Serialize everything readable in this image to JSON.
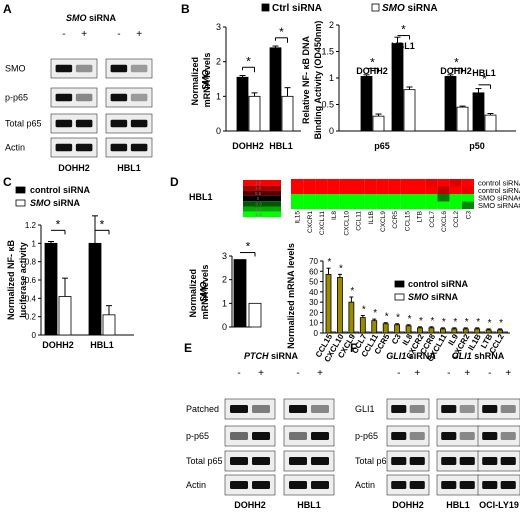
{
  "panels": {
    "A": {
      "letter": "A",
      "title": "SMO siRNA",
      "lane_signs": [
        "-",
        "+",
        "-",
        "+"
      ],
      "rows": [
        "SMO",
        "p-p65",
        "Total p65",
        "Actin"
      ],
      "cells": [
        "DOHH2",
        "HBL1"
      ],
      "band_levels": {
        "SMO": [
          [
            1,
            0.35
          ],
          [
            1,
            0.3
          ]
        ],
        "p-p65": [
          [
            1,
            0.4
          ],
          [
            1,
            0.3
          ]
        ],
        "Total p65": [
          [
            1,
            1
          ],
          [
            1,
            1
          ]
        ],
        "Actin": [
          [
            1,
            1
          ],
          [
            1,
            1
          ]
        ]
      }
    },
    "E": {
      "letter": "E",
      "title": "PTCH siRNA",
      "lane_signs": [
        "-",
        "+",
        "-",
        "+"
      ],
      "rows": [
        "Patched",
        "p-p65",
        "Total p65",
        "Actin"
      ],
      "cells": [
        "DOHH2",
        "HBL1"
      ],
      "band_levels": {
        "Patched": [
          [
            1,
            0.45
          ],
          [
            1,
            0.4
          ]
        ],
        "p-p65": [
          [
            0.55,
            1
          ],
          [
            0.5,
            1
          ]
        ],
        "Total p65": [
          [
            1,
            1
          ],
          [
            1,
            1
          ]
        ],
        "Actin": [
          [
            1,
            1
          ],
          [
            1,
            1
          ]
        ]
      }
    },
    "F": {
      "letter": "F",
      "title_left": "GLI1 siRNA",
      "title_right": "GLI1 shRNA",
      "lane_signs": [
        "-",
        "+",
        "-",
        "+",
        "-",
        "+"
      ],
      "rows": [
        "GLI1",
        "p-p65",
        "Total p65",
        "Actin"
      ],
      "cells": [
        "DOHH2",
        "HBL1",
        "OCI-LY19"
      ],
      "band_levels": {
        "GLI1": [
          [
            1,
            0.4
          ],
          [
            1,
            0.35
          ],
          [
            1,
            0.4
          ]
        ],
        "p-p65": [
          [
            1,
            0.4
          ],
          [
            1,
            0.4
          ],
          [
            1,
            0.4
          ]
        ],
        "Total p65": [
          [
            1,
            1
          ],
          [
            1,
            1
          ],
          [
            1,
            1
          ]
        ],
        "Actin": [
          [
            1,
            1
          ],
          [
            1,
            1
          ],
          [
            1,
            1
          ]
        ]
      }
    },
    "D": {
      "letter": "D",
      "cell_label": "HBL1",
      "scale_ticks": [
        "1.5",
        "1.0",
        "0.5",
        "0",
        "-0.5",
        "-1.0",
        "-1.5"
      ],
      "heatmap": {
        "rows": [
          "control siRNA#1",
          "control siRNA#2",
          "SMO siRNA#1",
          "SMO siRNA#2"
        ],
        "genes": [
          "IL15",
          "CXCR1",
          "CXCL11",
          "IL8",
          "CXCL10",
          "CCL11",
          "IL1B",
          "CXCL9",
          "CCR5",
          "CCL15",
          "LTB",
          "CCL7",
          "CXCL6",
          "CCL2",
          "C3"
        ],
        "values": [
          [
            1,
            1,
            1,
            1,
            1,
            1,
            1,
            1,
            1,
            1,
            1,
            0.9,
            1,
            0.8,
            1
          ],
          [
            1,
            1,
            1,
            1,
            1,
            1,
            1,
            1,
            1,
            1,
            1,
            1,
            0.6,
            1,
            0.9
          ],
          [
            -1,
            -1,
            -1,
            -1,
            -1,
            -1,
            -1,
            -1,
            -1,
            -1,
            -1,
            -1,
            -0.2,
            -1,
            -1
          ],
          [
            -1,
            -1,
            -1,
            -1,
            -1,
            -1,
            -1,
            -1,
            -1,
            -1,
            -1,
            -1,
            -1,
            -1,
            -0.3
          ]
        ]
      }
    }
  },
  "chart_data": [
    {
      "panel": "B-left",
      "type": "bar",
      "categories": [
        "DOHH2",
        "HBL1"
      ],
      "series": [
        {
          "name": "Ctrl siRNA",
          "values": [
            1.55,
            2.4
          ],
          "color": "#000000"
        },
        {
          "name": "SMO siRNA",
          "values": [
            1.0,
            1.0
          ],
          "color": "#ffffff"
        }
      ],
      "errors": [
        [
          0.05,
          0.05
        ],
        [
          0.1,
          0.25
        ]
      ],
      "ylabel": "Normalized SMO mRNA levels",
      "yticks": [
        "0",
        "1",
        "2",
        "3"
      ],
      "ylim": [
        0,
        3
      ],
      "significance": [
        "*",
        "*"
      ]
    },
    {
      "panel": "B-right",
      "type": "bar",
      "groups": [
        "p65",
        "p50"
      ],
      "cells": [
        "DOHH2",
        "HBL1",
        "DOHH2",
        "HBL1"
      ],
      "series": [
        {
          "name": "Ctrl siRNA",
          "values": [
            1.03,
            1.65,
            1.03,
            0.72
          ],
          "color": "#000000"
        },
        {
          "name": "SMO siRNA",
          "values": [
            0.28,
            0.78,
            0.45,
            0.3
          ],
          "color": "#ffffff"
        }
      ],
      "errors": [
        [
          0.03,
          0.12,
          0.03,
          0.08
        ],
        [
          0.04,
          0.05,
          0.02,
          0.03
        ]
      ],
      "ylabel": "Relative NF- κB DNA Binding Activity (OD450nm)",
      "yticks": [
        "0",
        "0.5",
        "1",
        "1.5",
        "2"
      ],
      "ylim": [
        0,
        2
      ],
      "significance": [
        "*",
        "*",
        "*",
        "*"
      ]
    },
    {
      "panel": "C",
      "type": "bar",
      "categories": [
        "DOHH2",
        "HBL1"
      ],
      "series": [
        {
          "name": "control siRNA",
          "values": [
            1.0,
            1.0
          ],
          "color": "#000000"
        },
        {
          "name": "SMO siRNA",
          "values": [
            0.42,
            0.22
          ],
          "color": "#ffffff"
        }
      ],
      "errors": [
        [
          0.02,
          0.3
        ],
        [
          0.2,
          0.1
        ]
      ],
      "ylabel": "Normalized NF- κB luciferase activity",
      "yticks": [
        "0",
        "0.2",
        "0.4",
        "0.6",
        "0.8",
        "1",
        "1.2"
      ],
      "ylim": [
        0,
        1.2
      ],
      "significance": [
        "*",
        "*"
      ]
    },
    {
      "panel": "D-left",
      "type": "bar",
      "categories": [
        "control siRNA",
        "SMO siRNA"
      ],
      "values": [
        2.85,
        1.0
      ],
      "colors": [
        "#000000",
        "#ffffff"
      ],
      "ylabel": "Normalized SMO mRNA levels",
      "yticks": [
        "0",
        "1",
        "2",
        "3"
      ],
      "ylim": [
        0,
        3
      ],
      "significance": [
        "*"
      ]
    },
    {
      "panel": "D-right",
      "type": "bar",
      "categories": [
        "CCL15",
        "CXCL10",
        "CXCL9",
        "CCL7",
        "CCL11",
        "CCR5",
        "C3",
        "IL8",
        "CXCR2",
        "CCR8",
        "CXCL11",
        "IL9",
        "CXCR2",
        "IL1B",
        "LTB",
        "CCL2"
      ],
      "series": [
        {
          "name": "control siRNA",
          "values": [
            57,
            54,
            30,
            15,
            12,
            9,
            8,
            7,
            5,
            5,
            4,
            4,
            4,
            4,
            3,
            3
          ],
          "color": "#9a8a00"
        },
        {
          "name": "SMO siRNA",
          "values": [
            1,
            1,
            1,
            1,
            1,
            1,
            1,
            1,
            1,
            1,
            1,
            1,
            1,
            1,
            1,
            1
          ],
          "color": "#ffffff"
        }
      ],
      "errors": [
        6,
        3,
        5,
        2,
        1.5,
        1,
        1,
        1,
        1,
        1,
        1,
        1,
        1,
        1,
        1,
        1
      ],
      "ylabel": "Normalized mRNA levels",
      "yticks": [
        "0",
        "10",
        "20",
        "30",
        "40",
        "50",
        "60",
        "70"
      ],
      "ylim": [
        0,
        70
      ],
      "significance": [
        "*",
        "*",
        "*",
        "*",
        "*",
        "*",
        "*",
        "*",
        "*",
        "*",
        "*",
        "*",
        "*",
        "*",
        "*",
        "*"
      ]
    }
  ]
}
